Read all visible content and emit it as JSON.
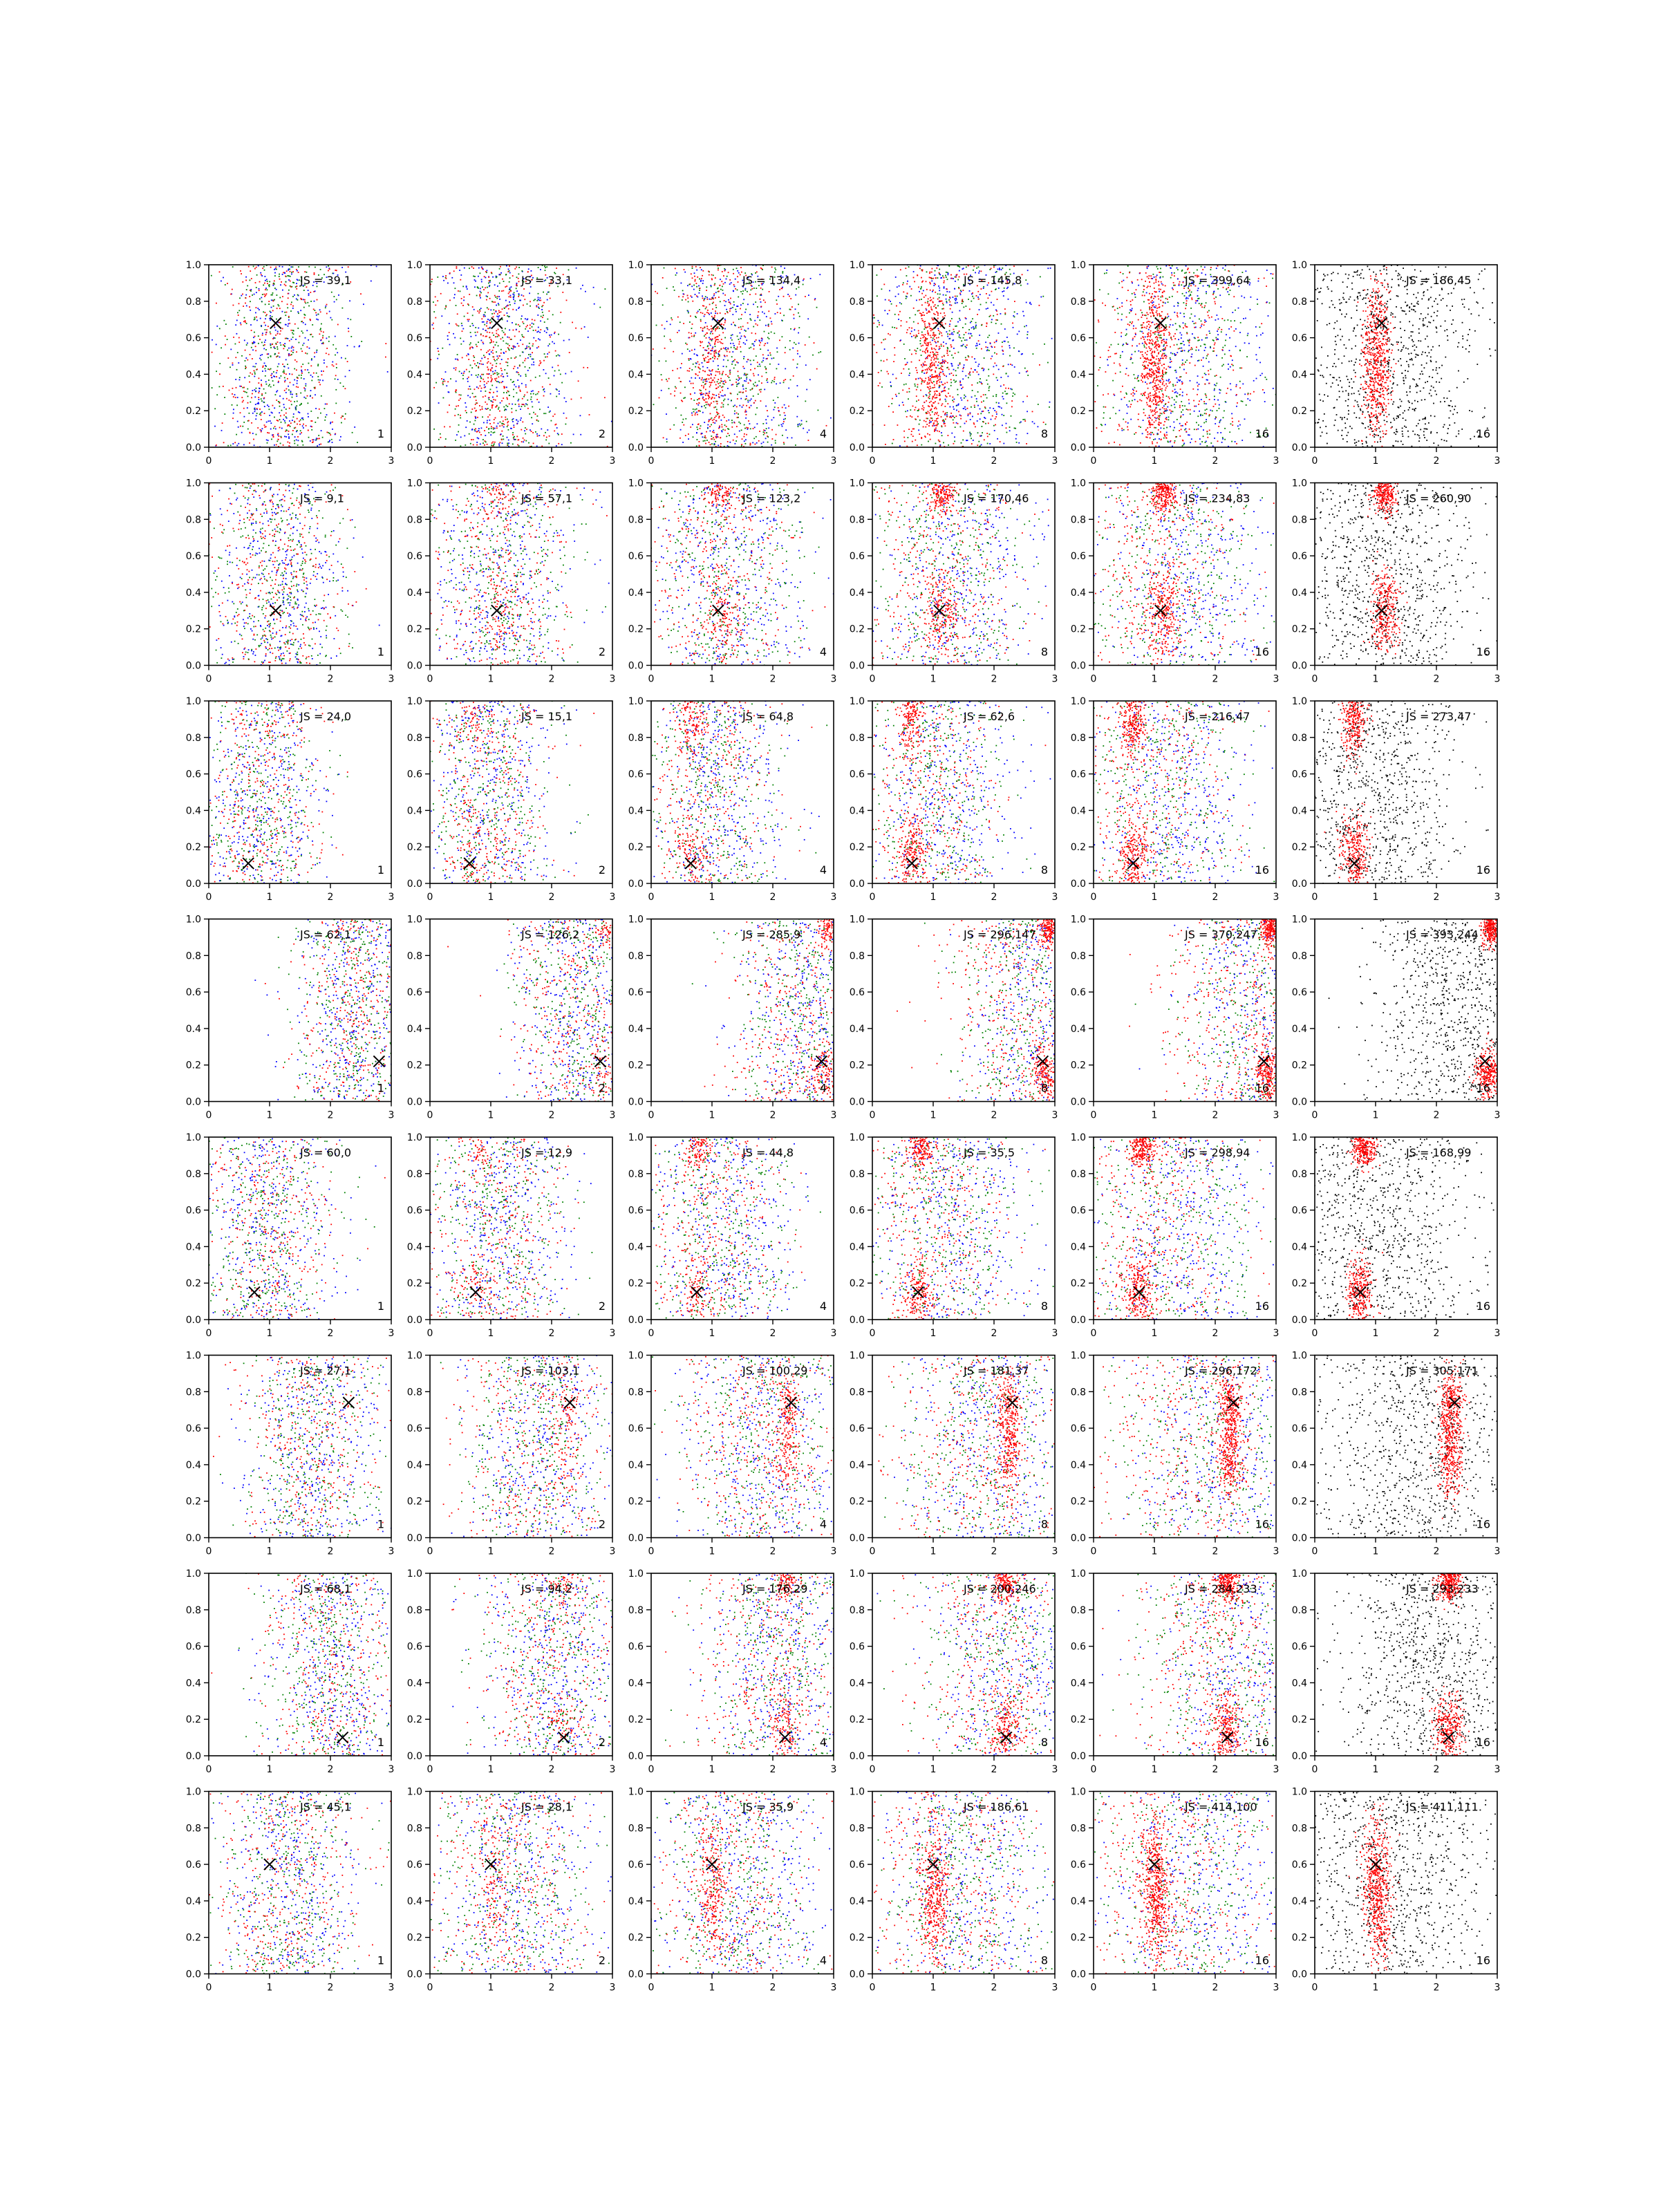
{
  "figure": {
    "rows": 8,
    "cols": 6,
    "colors": {
      "red": "#ff0000",
      "green": "#008000",
      "blue": "#0000ff",
      "black": "#000000",
      "marker": "#000000"
    }
  },
  "chart_data": [
    {
      "type": "scatter",
      "grid": false,
      "xlim": [
        0,
        3
      ],
      "ylim": [
        0,
        1
      ],
      "xticks": [
        "0",
        "1",
        "2",
        "3"
      ],
      "yticks": [
        "0.0",
        "0.2",
        "0.4",
        "0.6",
        "0.8",
        "1.0"
      ],
      "marker": {
        "symbol": "x",
        "x": 1.1,
        "y": 0.68
      },
      "rows": [
        {
          "panels": [
            {
              "js": "JS = 39,1",
              "k": "1"
            },
            {
              "js": "JS = 33,1",
              "k": "2"
            },
            {
              "js": "JS = 134,4",
              "k": "4"
            },
            {
              "js": "JS = 145,8",
              "k": "8"
            },
            {
              "js": "JS = 399,64",
              "k": "16"
            },
            {
              "js": "JS = 186,45",
              "k": "16"
            }
          ]
        }
      ]
    },
    {
      "type": "scatter",
      "grid": false,
      "xlim": [
        0,
        3
      ],
      "ylim": [
        0,
        1
      ],
      "xticks": [
        "0",
        "1",
        "2",
        "3"
      ],
      "yticks": [
        "0.0",
        "0.2",
        "0.4",
        "0.6",
        "0.8",
        "1.0"
      ],
      "marker": {
        "symbol": "x",
        "x": 1.1,
        "y": 0.3
      },
      "rows": [
        {
          "panels": [
            {
              "js": "JS = 9,1",
              "k": "1"
            },
            {
              "js": "JS = 57,1",
              "k": "2"
            },
            {
              "js": "JS = 123,2",
              "k": "4"
            },
            {
              "js": "JS = 170,46",
              "k": "8"
            },
            {
              "js": "JS = 234,83",
              "k": "16"
            },
            {
              "js": "JS = 260,90",
              "k": "16"
            }
          ]
        }
      ]
    },
    {
      "type": "scatter",
      "grid": false,
      "xlim": [
        0,
        3
      ],
      "ylim": [
        0,
        1
      ],
      "xticks": [
        "0",
        "1",
        "2",
        "3"
      ],
      "yticks": [
        "0.0",
        "0.2",
        "0.4",
        "0.6",
        "0.8",
        "1.0"
      ],
      "marker": {
        "symbol": "x",
        "x": 0.65,
        "y": 0.11
      },
      "rows": [
        {
          "panels": [
            {
              "js": "JS = 24,0",
              "k": "1"
            },
            {
              "js": "JS = 15,1",
              "k": "2"
            },
            {
              "js": "JS = 64,8",
              "k": "4"
            },
            {
              "js": "JS = 62,6",
              "k": "8"
            },
            {
              "js": "JS = 216,47",
              "k": "16"
            },
            {
              "js": "JS = 273,47",
              "k": "16"
            }
          ]
        }
      ]
    },
    {
      "type": "scatter",
      "grid": false,
      "xlim": [
        0,
        3
      ],
      "ylim": [
        0,
        1
      ],
      "xticks": [
        "0",
        "1",
        "2",
        "3"
      ],
      "yticks": [
        "0.0",
        "0.2",
        "0.4",
        "0.6",
        "0.8",
        "1.0"
      ],
      "marker": {
        "symbol": "x",
        "x": 2.8,
        "y": 0.22
      },
      "rows": [
        {
          "panels": [
            {
              "js": "JS = 62,1",
              "k": "1"
            },
            {
              "js": "JS = 126,2",
              "k": "2"
            },
            {
              "js": "JS = 285,9",
              "k": "4"
            },
            {
              "js": "JS = 296,147",
              "k": "8"
            },
            {
              "js": "JS = 370,247",
              "k": "16"
            },
            {
              "js": "JS = 393,244",
              "k": "16"
            }
          ]
        }
      ]
    },
    {
      "type": "scatter",
      "grid": false,
      "xlim": [
        0,
        3
      ],
      "ylim": [
        0,
        1
      ],
      "xticks": [
        "0",
        "1",
        "2",
        "3"
      ],
      "yticks": [
        "0.0",
        "0.2",
        "0.4",
        "0.6",
        "0.8",
        "1.0"
      ],
      "marker": {
        "symbol": "x",
        "x": 0.75,
        "y": 0.15
      },
      "rows": [
        {
          "panels": [
            {
              "js": "JS = 60,0",
              "k": "1"
            },
            {
              "js": "JS = 12,9",
              "k": "2"
            },
            {
              "js": "JS = 44,8",
              "k": "4"
            },
            {
              "js": "JS = 35,5",
              "k": "8"
            },
            {
              "js": "JS = 298,94",
              "k": "16"
            },
            {
              "js": "JS = 168,99",
              "k": "16"
            }
          ]
        }
      ]
    },
    {
      "type": "scatter",
      "grid": false,
      "xlim": [
        0,
        3
      ],
      "ylim": [
        0,
        1
      ],
      "xticks": [
        "0",
        "1",
        "2",
        "3"
      ],
      "yticks": [
        "0.0",
        "0.2",
        "0.4",
        "0.6",
        "0.8",
        "1.0"
      ],
      "marker": {
        "symbol": "x",
        "x": 2.3,
        "y": 0.74
      },
      "rows": [
        {
          "panels": [
            {
              "js": "JS = 27,1",
              "k": "1"
            },
            {
              "js": "JS = 103,1",
              "k": "2"
            },
            {
              "js": "JS = 100,29",
              "k": "4"
            },
            {
              "js": "JS = 181,37",
              "k": "8"
            },
            {
              "js": "JS = 296,172",
              "k": "16"
            },
            {
              "js": "JS = 305,171",
              "k": "16"
            }
          ]
        }
      ]
    },
    {
      "type": "scatter",
      "grid": false,
      "xlim": [
        0,
        3
      ],
      "ylim": [
        0,
        1
      ],
      "xticks": [
        "0",
        "1",
        "2",
        "3"
      ],
      "yticks": [
        "0.0",
        "0.2",
        "0.4",
        "0.6",
        "0.8",
        "1.0"
      ],
      "marker": {
        "symbol": "x",
        "x": 2.2,
        "y": 0.1
      },
      "rows": [
        {
          "panels": [
            {
              "js": "JS = 68,1",
              "k": "1"
            },
            {
              "js": "JS = 94,2",
              "k": "2"
            },
            {
              "js": "JS = 176,29",
              "k": "4"
            },
            {
              "js": "JS = 200,246",
              "k": "8"
            },
            {
              "js": "JS = 284,233",
              "k": "16"
            },
            {
              "js": "JS = 293,233",
              "k": "16"
            }
          ]
        }
      ]
    },
    {
      "type": "scatter",
      "grid": false,
      "xlim": [
        0,
        3
      ],
      "ylim": [
        0,
        1
      ],
      "xticks": [
        "0",
        "1",
        "2",
        "3"
      ],
      "yticks": [
        "0.0",
        "0.2",
        "0.4",
        "0.6",
        "0.8",
        "1.0"
      ],
      "marker": {
        "symbol": "x",
        "x": 1.0,
        "y": 0.6
      },
      "rows": [
        {
          "panels": [
            {
              "js": "JS = 45,1",
              "k": "1"
            },
            {
              "js": "JS = 28,1",
              "k": "2"
            },
            {
              "js": "JS = 35,9",
              "k": "4"
            },
            {
              "js": "JS = 186,61",
              "k": "8"
            },
            {
              "js": "JS = 414,100",
              "k": "16"
            },
            {
              "js": "JS = 411,111",
              "k": "16"
            }
          ]
        }
      ]
    }
  ]
}
